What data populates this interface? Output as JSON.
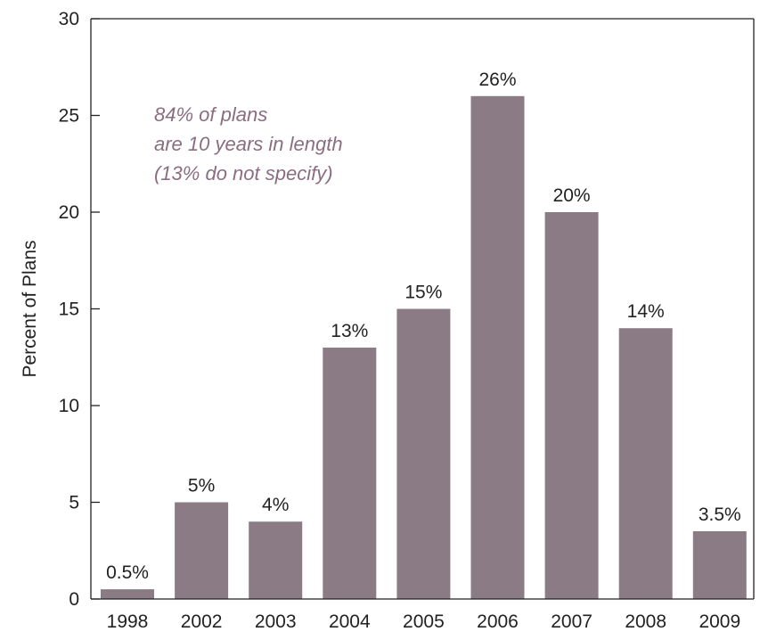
{
  "chart_data": {
    "type": "bar",
    "categories": [
      "1998",
      "2002",
      "2003",
      "2004",
      "2005",
      "2006",
      "2007",
      "2008",
      "2009"
    ],
    "values": [
      0.5,
      5,
      4,
      13,
      15,
      26,
      20,
      14,
      3.5
    ],
    "data_labels": [
      "0.5%",
      "5%",
      "4%",
      "13%",
      "15%",
      "26%",
      "20%",
      "14%",
      "3.5%"
    ],
    "title": "",
    "xlabel": "",
    "ylabel": "Percent of Plans",
    "ylim": [
      0,
      30
    ],
    "yticks": [
      0,
      5,
      10,
      15,
      20,
      25,
      30
    ],
    "grid": false,
    "legend": "none",
    "annotation": [
      "84% of plans",
      "are 10 years in length",
      "(13% do not specify)"
    ],
    "colors": {
      "bar": "#8b7b85",
      "annotation": "#8b6d82",
      "axis": "#222222"
    }
  }
}
